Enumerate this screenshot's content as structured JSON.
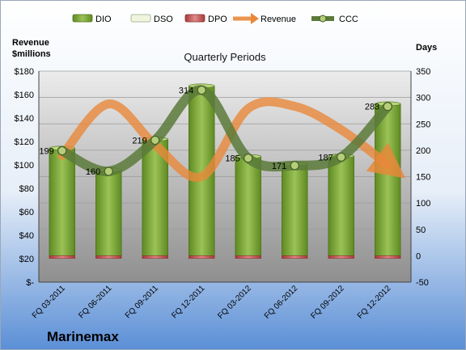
{
  "company": "Marinemax",
  "chart_data": {
    "type": "bar",
    "title": "Quarterly Periods",
    "left_axis": {
      "label_line1": "Revenue",
      "label_line2": "$millions",
      "ylim": [
        0,
        180
      ],
      "ticks": [
        "$-",
        "$20",
        "$40",
        "$60",
        "$80",
        "$100",
        "$120",
        "$140",
        "$160",
        "$180"
      ]
    },
    "right_axis": {
      "label": "Days",
      "ylim": [
        -50,
        350
      ],
      "ticks": [
        "-50",
        "0",
        "50",
        "100",
        "150",
        "200",
        "250",
        "300",
        "350"
      ]
    },
    "categories": [
      "FQ 03-2011",
      "FQ 06-2011",
      "FQ 09-2011",
      "FQ 12-2011",
      "FQ 03-2012",
      "FQ 06-2012",
      "FQ 09-2012",
      "FQ 12-2012"
    ],
    "series": [
      {
        "name": "DIO",
        "axis": "right",
        "kind": "bar",
        "color": "#7aa33a",
        "values": [
          204,
          163,
          221,
          322,
          188,
          174,
          189,
          288
        ]
      },
      {
        "name": "DSO",
        "axis": "right",
        "kind": "bar",
        "color": "#eef5dc",
        "values": [
          0,
          0,
          0,
          0,
          0,
          0,
          0,
          0
        ]
      },
      {
        "name": "DPO",
        "axis": "right",
        "kind": "bar",
        "color": "#c0504d",
        "values": [
          -5,
          -5,
          -5,
          -5,
          -5,
          -5,
          -5,
          -5
        ]
      },
      {
        "name": "Revenue",
        "axis": "left",
        "kind": "line",
        "color": "#e8883a",
        "values": [
          108,
          152,
          117,
          90,
          148,
          150,
          130,
          100
        ]
      },
      {
        "name": "CCC",
        "axis": "right",
        "kind": "line",
        "color": "#5b7a3a",
        "values": [
          199,
          160,
          219,
          314,
          185,
          171,
          187,
          283
        ]
      }
    ],
    "data_labels": [
      "199",
      "160",
      "219",
      "314",
      "185",
      "171",
      "187",
      "283"
    ],
    "legend": {
      "position": "top",
      "items": [
        {
          "name": "DIO",
          "kind": "bar",
          "color": "#7aa33a"
        },
        {
          "name": "DSO",
          "kind": "bar",
          "color": "#eef5dc"
        },
        {
          "name": "DPO",
          "kind": "bar",
          "color": "#c0504d"
        },
        {
          "name": "Revenue",
          "kind": "arrow",
          "color": "#e8883a"
        },
        {
          "name": "CCC",
          "kind": "line",
          "color": "#5b7a3a"
        }
      ]
    },
    "grid": true
  }
}
